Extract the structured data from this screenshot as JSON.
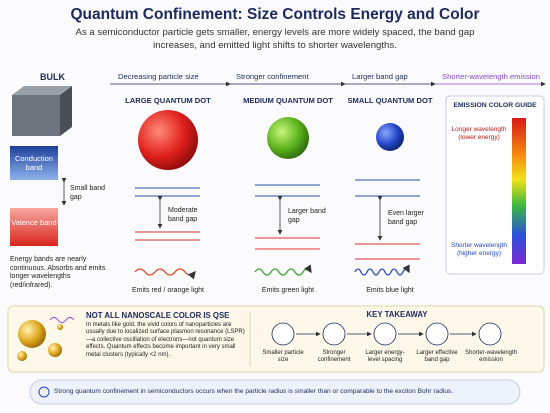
{
  "header": {
    "title": "Quantum Confinement: Size Controls Energy and Color",
    "subtitle": "As a semiconductor particle gets smaller, energy levels are more widely spaced, the band gap increases, and emitted light shifts to shorter wavelengths."
  },
  "flow": [
    "Decreasing particle size",
    "Stronger confinement",
    "Larger band gap",
    "Shorter-wavelength emission"
  ],
  "bulk": {
    "label": "BULK",
    "conduction_band": "Conduction band",
    "band_gap": "Small band gap",
    "valence_band": "Valence band",
    "note": "Energy bands are nearly continuous. Absorbs and emits longer wavelengths (red/infrared)."
  },
  "dots": [
    {
      "label": "LARGE QUANTUM DOT",
      "band_gap": "Moderate band gap",
      "emission": "Emits red / orange light"
    },
    {
      "label": "MEDIUM QUANTUM DOT",
      "band_gap": "Larger band gap",
      "emission": "Emits green light"
    },
    {
      "label": "SMALL QUANTUM DOT",
      "band_gap": "Even larger band gap",
      "emission": "Emits blue light"
    }
  ],
  "color_guide": {
    "title": "EMISSION COLOR GUIDE",
    "longer": "Longer wavelength (lower energy)",
    "shorter": "Shorter wavelength (higher energy)"
  },
  "note": {
    "title": "NOT ALL NANOSCALE COLOR IS QSE",
    "text": "In metals like gold, the vivid colors of nanoparticles are usually due to localized surface plasmon resonance (LSPR)—a collective oscillation of electrons—not quantum size effects. Quantum effects become important in very small metal clusters (typically <2 nm)."
  },
  "takeaway": {
    "title": "KEY TAKEAWAY",
    "steps": [
      "Smaller particle size",
      "Stronger confinement",
      "Larger energy-level spacing",
      "Larger effective band gap",
      "Shorter-wavelength emission"
    ]
  },
  "footer": "Strong quantum confinement in semiconductors occurs when the particle radius is smaller than or comparable to the exciton Bohr radius."
}
